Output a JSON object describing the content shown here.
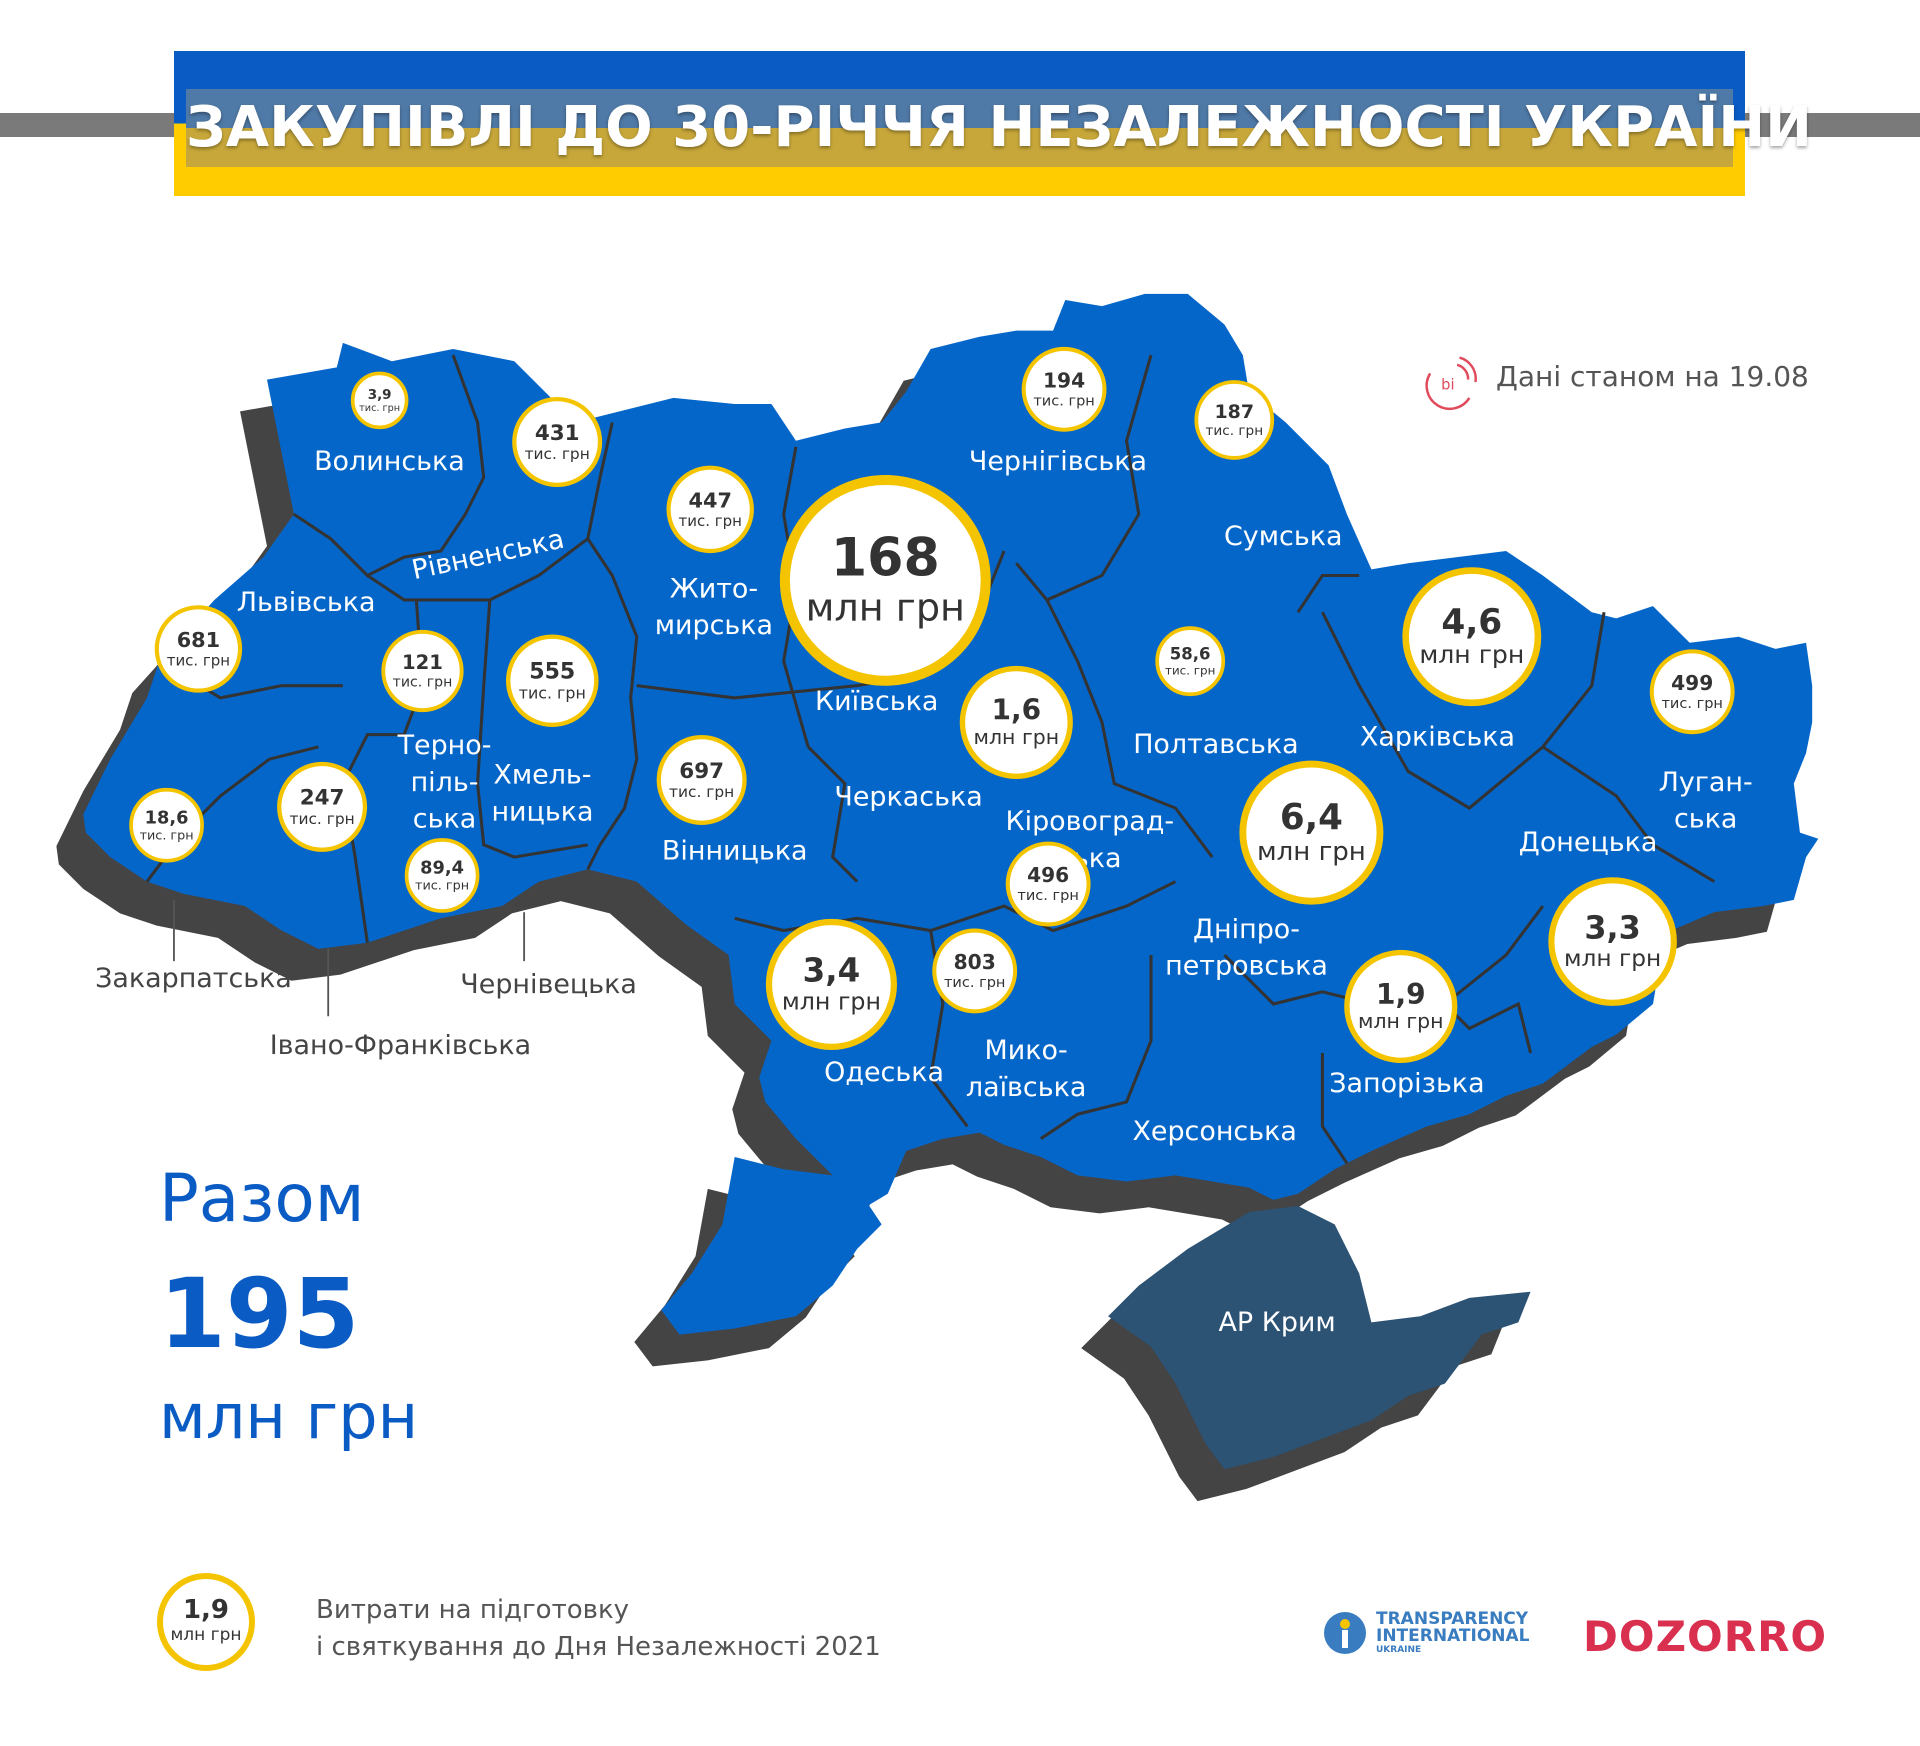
{
  "title": "ЗАКУПІВЛІ ДО 30-РІЧЧЯ НЕЗАЛЕЖНОСТІ УКРАЇНИ",
  "as_of": "Дані станом на 19.08",
  "colors": {
    "region_fill": "#0566c9",
    "crimea_fill": "#2c5274",
    "shadow": "#444444",
    "circle_border": "#f5c400",
    "title_blue": "#0a5bc4",
    "title_yellow": "#ffcc00",
    "dozorro": "#d9304f"
  },
  "regions": [
    {
      "name": [
        "Волинська"
      ],
      "value": "3,9",
      "unit": "тис. грн"
    },
    {
      "name": [
        "Рівненська"
      ],
      "value": "431",
      "unit": "тис. грн"
    },
    {
      "name": [
        "Жито-",
        "мирська"
      ],
      "value": "447",
      "unit": "тис. грн"
    },
    {
      "name": [
        "Київська"
      ],
      "value": "168",
      "unit": "млн грн"
    },
    {
      "name": [
        "Чернігівська"
      ],
      "value": "194",
      "unit": "тис. грн"
    },
    {
      "name": [
        "Сумська"
      ],
      "value": "187",
      "unit": "тис. грн"
    },
    {
      "name": [
        "Львівська"
      ],
      "value": "681",
      "unit": "тис. грн"
    },
    {
      "name": [
        "Терно-",
        "піль-",
        "ська"
      ],
      "value": "121",
      "unit": "тис. грн"
    },
    {
      "name": [
        "Хмель-",
        "ницька"
      ],
      "value": "555",
      "unit": "тис. грн"
    },
    {
      "name": [
        "Вінницька"
      ],
      "value": "697",
      "unit": "тис. грн"
    },
    {
      "name": [
        "Закарпатська"
      ],
      "value": "18,6",
      "unit": "тис. грн"
    },
    {
      "name": [
        "Івано-Франківська"
      ],
      "value": "247",
      "unit": "тис. грн"
    },
    {
      "name": [
        "Чернівецька"
      ],
      "value": "89,4",
      "unit": "тис. грн"
    },
    {
      "name": [
        "Черкаська"
      ],
      "value": "1,6",
      "unit": "млн грн"
    },
    {
      "name": [
        "Полтавська"
      ],
      "value": "58,6",
      "unit": "тис. грн"
    },
    {
      "name": [
        "Харківська"
      ],
      "value": "4,6",
      "unit": "млн грн"
    },
    {
      "name": [
        "Луган-",
        "ська"
      ],
      "value": "499",
      "unit": "тис. грн"
    },
    {
      "name": [
        "Кіровоград-",
        "ська"
      ],
      "value": "496",
      "unit": "тис. грн"
    },
    {
      "name": [
        "Донецька"
      ],
      "value": "3,3",
      "unit": "млн грн"
    },
    {
      "name": [
        "Дніпро-",
        "петровська"
      ],
      "value": "6,4",
      "unit": "млн грн"
    },
    {
      "name": [
        "Одеська"
      ],
      "value": "3,4",
      "unit": "млн грн"
    },
    {
      "name": [
        "Мико-",
        "лаївська"
      ],
      "value": "803",
      "unit": "тис. грн"
    },
    {
      "name": [
        "Запорізька"
      ],
      "value": "1,9",
      "unit": "млн грн"
    },
    {
      "name": [
        "Херсонська"
      ]
    },
    {
      "name": [
        "АР Крим"
      ]
    }
  ],
  "total": {
    "label": "Разом",
    "value": "195",
    "unit": "млн грн"
  },
  "legend": {
    "value": "1,9",
    "unit": "млн грн",
    "line1": "Витрати на підготовку",
    "line2": "і святкування до Дня Незалежності 2021"
  },
  "logos": {
    "bipro": "bi pro",
    "ti": [
      "TRANSPARENCY",
      "INTERNATIONAL",
      "UKRAINE"
    ],
    "dozorro": "DOZORRO"
  }
}
